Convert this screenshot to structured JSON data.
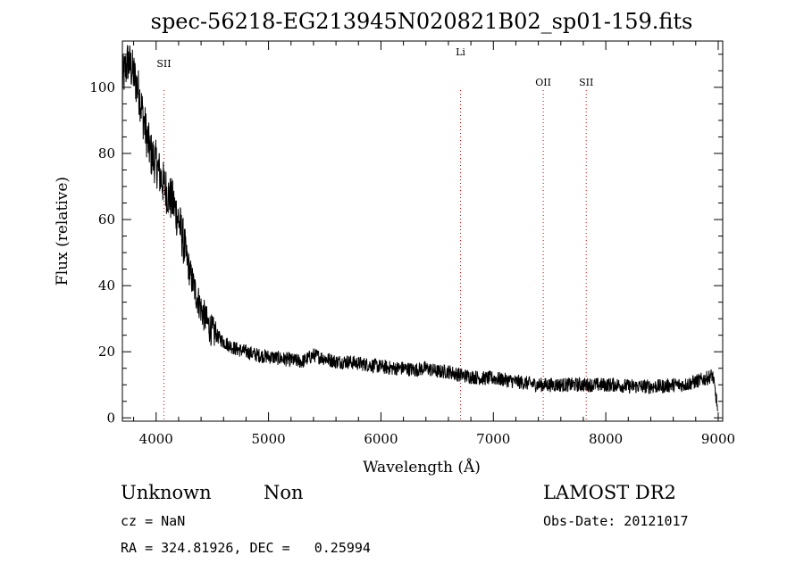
{
  "chart_data": {
    "type": "line",
    "title": "spec-56218-EG213945N020821B02_sp01-159.fits",
    "xlabel": "Wavelength (Å)",
    "ylabel": "Flux (relative)",
    "xlim": [
      3700,
      9040
    ],
    "ylim": [
      -1,
      114
    ],
    "x_ticks": [
      4000,
      5000,
      6000,
      7000,
      8000,
      9000
    ],
    "y_ticks": [
      0,
      20,
      40,
      60,
      80,
      100
    ],
    "x_tick_labels": [
      "4000",
      "5000",
      "6000",
      "7000",
      "8000",
      "9000"
    ],
    "y_tick_labels": [
      "0",
      "20",
      "40",
      "60",
      "80",
      "100"
    ],
    "grid": false,
    "series": [
      {
        "color": "#000000",
        "x": [
          3700,
          3750,
          3800,
          3850,
          3900,
          3950,
          4000,
          4050,
          4100,
          4150,
          4200,
          4250,
          4300,
          4350,
          4400,
          4450,
          4500,
          4600,
          4700,
          4800,
          4900,
          5000,
          5100,
          5200,
          5300,
          5400,
          5500,
          5600,
          5700,
          5800,
          5900,
          6000,
          6100,
          6200,
          6300,
          6400,
          6500,
          6600,
          6700,
          6800,
          6900,
          7000,
          7100,
          7200,
          7300,
          7400,
          7500,
          7600,
          7700,
          7800,
          7900,
          8000,
          8100,
          8200,
          8300,
          8400,
          8500,
          8600,
          8700,
          8800,
          8900,
          8950,
          9000
        ],
        "y": [
          102,
          108,
          104,
          98,
          88,
          80,
          77,
          72,
          68,
          65,
          60,
          52,
          44,
          38,
          33,
          29,
          26,
          23,
          21,
          20,
          19,
          18.5,
          18,
          17.5,
          17,
          19,
          18,
          17,
          17,
          16.5,
          16,
          15.5,
          15,
          15,
          14.5,
          15,
          14,
          14,
          13,
          12.5,
          12,
          12,
          11.5,
          11,
          10.5,
          10,
          10,
          10,
          10,
          10,
          10,
          10,
          10,
          9.5,
          9.5,
          9.5,
          9.5,
          10,
          10,
          11,
          12,
          13,
          2
        ]
      }
    ],
    "line_markers": [
      {
        "label": "SII",
        "x": 4069,
        "color": "#cc0000"
      },
      {
        "label": "Li",
        "x": 6708,
        "color": "#cc0000"
      },
      {
        "label": "OII",
        "x": 7444,
        "color": "#cc0000"
      },
      {
        "label": "SII",
        "x": 7826,
        "color": "#cc0000"
      }
    ]
  },
  "info": {
    "class": "Unknown",
    "subclass": "Non",
    "survey": "LAMOST DR2",
    "cz": "cz = NaN",
    "obs_date": "Obs-Date: 20121017",
    "coords": "RA = 324.81926, DEC =   0.25994"
  }
}
